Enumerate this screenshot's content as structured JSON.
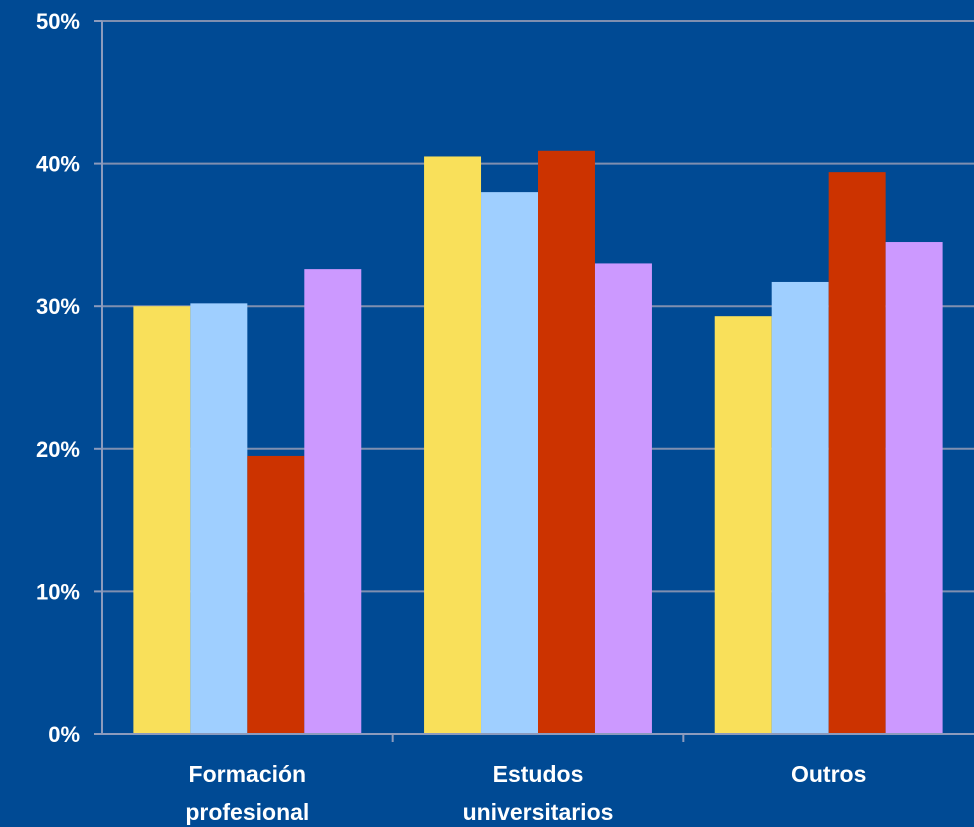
{
  "chart_data": {
    "type": "bar",
    "title": "",
    "xlabel": "",
    "ylabel": "",
    "categories": [
      [
        "Formación",
        "profesional"
      ],
      [
        "Estudos",
        "universitarios"
      ],
      [
        "Outros"
      ]
    ],
    "series": [
      {
        "color": "#f9e05a",
        "values": [
          30.0,
          40.5,
          29.3
        ]
      },
      {
        "color": "#9fcfff",
        "values": [
          30.2,
          38.0,
          31.7
        ]
      },
      {
        "color": "#cc3300",
        "values": [
          19.5,
          40.9,
          39.4
        ]
      },
      {
        "color": "#cc99ff",
        "values": [
          32.6,
          33.0,
          34.5
        ]
      }
    ],
    "ylim": [
      0,
      50
    ],
    "yticks": [
      0,
      10,
      20,
      30,
      40,
      50
    ],
    "ytick_labels": [
      "0%",
      "10%",
      "20%",
      "30%",
      "40%",
      "50%"
    ],
    "grid": true,
    "legend": "none",
    "background": "#004a94"
  }
}
